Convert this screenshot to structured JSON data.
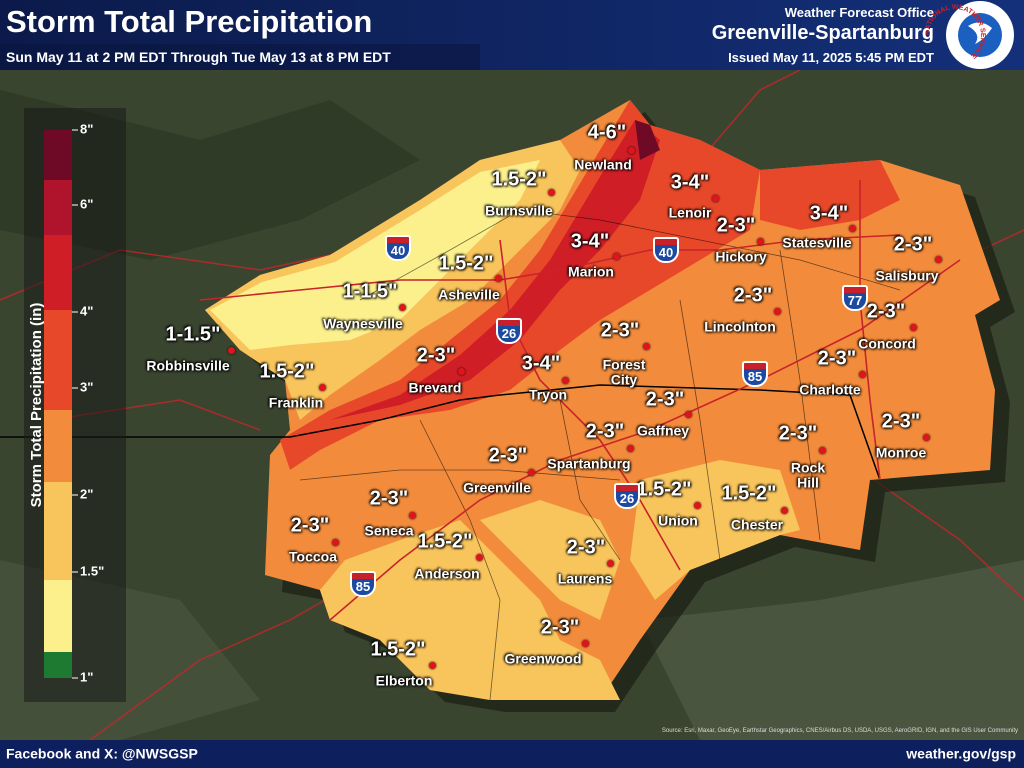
{
  "header": {
    "title": "Storm Total Precipitation",
    "subtitle": "Sun May 11 at 2 PM EDT Through Tue May 13 at 8 PM EDT",
    "office_label": "Weather Forecast Office",
    "office": "Greenville-Spartanburg",
    "issued": "Issued May 11, 2025 5:45 PM EDT",
    "logo_text": "NATIONAL WEATHER SERVICE"
  },
  "legend": {
    "title": "Storm Total Precipitation (in)",
    "ticks": [
      "8\"",
      "6\"",
      "4\"",
      "3\"",
      "2\"",
      "1.5\"",
      "1\""
    ]
  },
  "places": [
    {
      "name": "Newland",
      "amount": "4-6\""
    },
    {
      "name": "Burnsville",
      "amount": "1.5-2\""
    },
    {
      "name": "Lenoir",
      "amount": "3-4\""
    },
    {
      "name": "Marion",
      "amount": "3-4\""
    },
    {
      "name": "Asheville",
      "amount": "1.5-2\""
    },
    {
      "name": "Hickory",
      "amount": "2-3\""
    },
    {
      "name": "Statesville",
      "amount": "3-4\""
    },
    {
      "name": "Salisbury",
      "amount": "2-3\""
    },
    {
      "name": "Waynesville",
      "amount": "1-1.5\""
    },
    {
      "name": "Robbinsville",
      "amount": "1-1.5\""
    },
    {
      "name": "Franklin",
      "amount": "1.5-2\""
    },
    {
      "name": "Brevard",
      "amount": "2-3\""
    },
    {
      "name": "Tryon",
      "amount": "3-4\""
    },
    {
      "name": "Forest City",
      "amount": "2-3\""
    },
    {
      "name": "Lincolnton",
      "amount": "2-3\""
    },
    {
      "name": "Concord",
      "amount": "2-3\""
    },
    {
      "name": "Charlotte",
      "amount": "2-3\""
    },
    {
      "name": "Gaffney",
      "amount": "2-3\""
    },
    {
      "name": "Spartanburg",
      "amount": "2-3\""
    },
    {
      "name": "Greenville",
      "amount": "2-3\""
    },
    {
      "name": "Rock Hill",
      "amount": "2-3\""
    },
    {
      "name": "Monroe",
      "amount": "2-3\""
    },
    {
      "name": "Union",
      "amount": "1.5-2\""
    },
    {
      "name": "Chester",
      "amount": "1.5-2\""
    },
    {
      "name": "Seneca",
      "amount": "2-3\""
    },
    {
      "name": "Toccoa",
      "amount": "2-3\""
    },
    {
      "name": "Anderson",
      "amount": "1.5-2\""
    },
    {
      "name": "Laurens",
      "amount": "2-3\""
    },
    {
      "name": "Greenwood",
      "amount": "2-3\""
    },
    {
      "name": "Elberton",
      "amount": "1.5-2\""
    }
  ],
  "highways": [
    "40",
    "40",
    "26",
    "85",
    "77",
    "26",
    "85"
  ],
  "footer": {
    "social": "Facebook and X: @NWSGSP",
    "website": "weather.gov/gsp",
    "source": "Source: Esri, Maxar, GeoEye, Earthstar Geographics, CNES/Airbus DS, USDA, USGS, AeroGRID, IGN, and the GIS User Community"
  }
}
